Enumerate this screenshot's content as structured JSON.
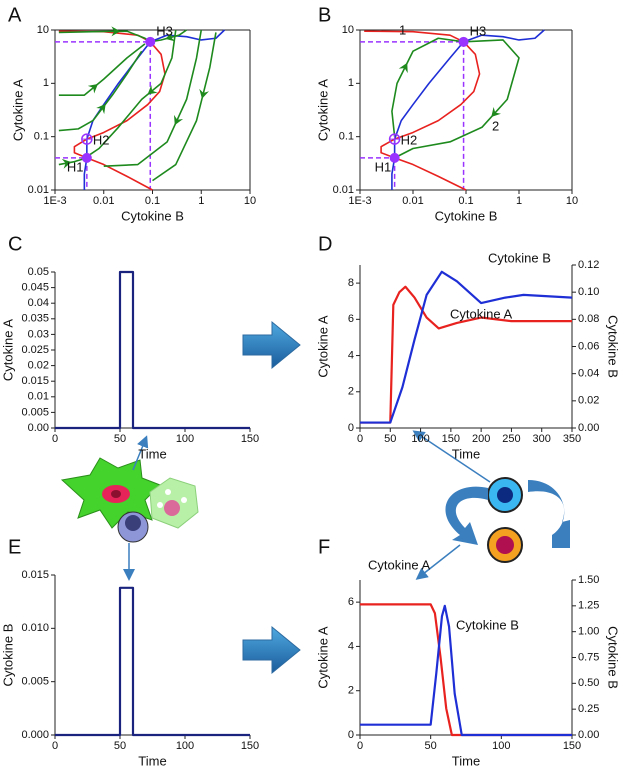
{
  "chart_data": [
    {
      "type": "phase",
      "panel": "A",
      "xlabel": "Cytokine B",
      "ylabel": "Cytokine A",
      "xscale": "log",
      "yscale": "log",
      "xlim": [
        0.001,
        10
      ],
      "ylim": [
        0.01,
        10
      ],
      "xticks": [
        {
          "value": 0.001,
          "label": "1E-3"
        },
        0.01,
        0.1,
        1,
        10
      ],
      "yticks": [
        0.01,
        0.1,
        1,
        10
      ],
      "guide_color": "#9933ff",
      "series": [
        {
          "color": "#e8221f",
          "x": [
            0.0012,
            0.01,
            0.05,
            0.09,
            0.15,
            0.18,
            0.14,
            0.08,
            0.03,
            0.01,
            0.0045,
            0.0025,
            0.0025,
            0.0045,
            0.01,
            0.03,
            0.1
          ],
          "values": [
            9.5,
            9.3,
            8,
            6,
            3.5,
            1.5,
            0.7,
            0.4,
            0.2,
            0.12,
            0.09,
            0.065,
            0.05,
            0.04,
            0.03,
            0.018,
            0.01
          ]
        },
        {
          "color": "#1f2fd6",
          "x": [
            0.004,
            0.004,
            0.0045,
            0.0045,
            0.006,
            0.01,
            0.02,
            0.05,
            0.09,
            0.2,
            0.5,
            1,
            2,
            3
          ],
          "values": [
            0.01,
            0.02,
            0.04,
            0.09,
            0.2,
            0.4,
            1,
            3,
            6,
            8,
            7.5,
            6.5,
            7,
            10
          ]
        },
        {
          "color": "#1e8a1e",
          "x": [
            0.0012,
            0.01,
            0.03,
            0.07,
            0.09
          ],
          "values": [
            9,
            9.4,
            9.5,
            7,
            6
          ]
        },
        {
          "color": "#1e8a1e",
          "x": [
            0.0012,
            0.004,
            0.01,
            0.03,
            0.07
          ],
          "values": [
            0.6,
            0.6,
            1.2,
            3,
            5.5
          ]
        },
        {
          "color": "#1e8a1e",
          "x": [
            0.0012,
            0.003,
            0.006,
            0.015,
            0.03,
            0.06
          ],
          "values": [
            0.13,
            0.14,
            0.2,
            0.6,
            1.5,
            4
          ]
        },
        {
          "color": "#1e8a1e",
          "x": [
            0.0012,
            0.0025,
            0.0045
          ],
          "values": [
            0.03,
            0.034,
            0.04
          ]
        },
        {
          "color": "#1e8a1e",
          "x": [
            0.5,
            0.35,
            0.15,
            0.1
          ],
          "values": [
            10,
            8,
            6.5,
            6.1
          ]
        },
        {
          "color": "#1e8a1e",
          "x": [
            0.3,
            0.25,
            0.15,
            0.06,
            0.02,
            0.008,
            0.005
          ],
          "values": [
            10,
            3,
            1,
            0.5,
            0.15,
            0.06,
            0.045
          ]
        },
        {
          "color": "#1e8a1e",
          "x": [
            1,
            0.8,
            0.5,
            0.2,
            0.05,
            0.01
          ],
          "values": [
            10,
            3,
            0.5,
            0.08,
            0.03,
            0.028
          ]
        },
        {
          "color": "#1e8a1e",
          "x": [
            2,
            1.5,
            0.8,
            0.3,
            0.1
          ],
          "values": [
            9,
            2,
            0.2,
            0.03,
            0.015
          ]
        }
      ],
      "points": [
        {
          "label": "H1",
          "x": 0.0045,
          "y": 0.04,
          "guides": true
        },
        {
          "label": "H2",
          "x": 0.0045,
          "y": 0.09,
          "hollow": true
        },
        {
          "label": "H3",
          "x": 0.09,
          "y": 6,
          "guides": true
        }
      ]
    },
    {
      "type": "phase",
      "panel": "B",
      "xlabel": "Cytokine B",
      "ylabel": "Cytokine A",
      "xscale": "log",
      "yscale": "log",
      "xlim": [
        0.001,
        10
      ],
      "ylim": [
        0.01,
        10
      ],
      "xticks": [
        {
          "value": 0.001,
          "label": "1E-3"
        },
        0.01,
        0.1,
        1,
        10
      ],
      "yticks": [
        0.01,
        0.1,
        1,
        10
      ],
      "guide_color": "#9933ff",
      "series": [
        {
          "color": "#e8221f",
          "x": [
            0.0012,
            0.01,
            0.05,
            0.09,
            0.15,
            0.18,
            0.14,
            0.08,
            0.03,
            0.01,
            0.0045,
            0.0025,
            0.0025,
            0.0045,
            0.01,
            0.03,
            0.1
          ],
          "values": [
            9.5,
            9.3,
            8,
            6,
            3.5,
            1.5,
            0.7,
            0.4,
            0.2,
            0.12,
            0.09,
            0.065,
            0.05,
            0.04,
            0.03,
            0.018,
            0.01
          ]
        },
        {
          "color": "#1f2fd6",
          "x": [
            0.004,
            0.004,
            0.0045,
            0.0045,
            0.006,
            0.01,
            0.02,
            0.05,
            0.09,
            0.2,
            0.5,
            1,
            2,
            3
          ],
          "values": [
            0.01,
            0.02,
            0.04,
            0.09,
            0.2,
            0.4,
            1,
            3,
            6,
            8,
            7.5,
            6.5,
            7,
            10
          ]
        },
        {
          "color": "#1e8a1e",
          "label": "1",
          "x": [
            0.0045,
            0.004,
            0.005,
            0.01,
            0.03,
            0.09
          ],
          "values": [
            0.1,
            0.3,
            1,
            4,
            7,
            6
          ]
        },
        {
          "color": "#1e8a1e",
          "label": "2",
          "x": [
            0.09,
            0.5,
            1,
            0.6,
            0.2,
            0.05,
            0.01,
            0.0045
          ],
          "values": [
            6,
            6.5,
            3,
            0.5,
            0.15,
            0.08,
            0.06,
            0.04
          ]
        }
      ],
      "points": [
        {
          "label": "H1",
          "x": 0.0045,
          "y": 0.04,
          "guides": true
        },
        {
          "label": "H2",
          "x": 0.0045,
          "y": 0.09,
          "hollow": true
        },
        {
          "label": "H3",
          "x": 0.09,
          "y": 6,
          "guides": true
        }
      ]
    },
    {
      "type": "line",
      "panel": "C",
      "xlabel": "Time",
      "ylabel": "Cytokine A",
      "xlim": [
        0,
        150
      ],
      "ylim": [
        0,
        0.05
      ],
      "xticks": [
        0,
        50,
        100,
        150
      ],
      "yticks": [
        {
          "value": 0,
          "label": "0.00"
        },
        0.005,
        0.01,
        0.015,
        0.02,
        0.025,
        0.03,
        0.035,
        0.04,
        0.045,
        0.05
      ],
      "series": [
        {
          "color": "#1a237e",
          "x": [
            0,
            50,
            50,
            60,
            60,
            150
          ],
          "values": [
            0,
            0,
            0.05,
            0.05,
            0,
            0
          ]
        }
      ]
    },
    {
      "type": "line",
      "panel": "D",
      "xlabel": "Time",
      "ylabel": "Cytokine A",
      "y2label": "Cytokine B",
      "xlim": [
        0,
        350
      ],
      "ylim": [
        0,
        9
      ],
      "y2lim": [
        0,
        0.12
      ],
      "xticks": [
        0,
        50,
        100,
        150,
        200,
        250,
        300,
        350
      ],
      "yticks": [
        0,
        2,
        4,
        6,
        8
      ],
      "y2ticks": [
        {
          "value": 0,
          "label": "0.00"
        },
        0.02,
        0.04,
        0.06,
        0.08,
        {
          "value": 0.1,
          "label": "0.10"
        },
        0.12
      ],
      "series": [
        {
          "name": "Cytokine A",
          "color": "#e8221f",
          "x": [
            0,
            50,
            55,
            65,
            75,
            90,
            110,
            130,
            160,
            200,
            250,
            300,
            350
          ],
          "values": [
            0.3,
            0.3,
            6.8,
            7.5,
            7.8,
            7.2,
            6.1,
            5.5,
            5.8,
            6.1,
            5.9,
            5.9,
            5.9
          ]
        },
        {
          "name": "Cytokine B",
          "color": "#1f2fd6",
          "axis": "y2",
          "x": [
            0,
            50,
            70,
            90,
            110,
            135,
            160,
            200,
            240,
            270,
            310,
            350
          ],
          "values": [
            0.004,
            0.004,
            0.03,
            0.065,
            0.098,
            0.115,
            0.108,
            0.092,
            0.096,
            0.098,
            0.097,
            0.096
          ]
        }
      ]
    },
    {
      "type": "line",
      "panel": "E",
      "xlabel": "Time",
      "ylabel": "Cytokine B",
      "xlim": [
        0,
        150
      ],
      "ylim": [
        0,
        0.015
      ],
      "xticks": [
        0,
        50,
        100,
        150
      ],
      "yticks": [
        {
          "value": 0,
          "label": "0.000"
        },
        0.005,
        {
          "value": 0.01,
          "label": "0.010"
        },
        0.015
      ],
      "series": [
        {
          "color": "#1a237e",
          "x": [
            0,
            50,
            50,
            60,
            60,
            150
          ],
          "values": [
            0,
            0,
            0.0138,
            0.0138,
            0,
            0
          ]
        }
      ]
    },
    {
      "type": "line",
      "panel": "F",
      "xlabel": "Time",
      "ylabel": "Cytokine A",
      "y2label": "Cytokine B",
      "xlim": [
        0,
        150
      ],
      "ylim": [
        0,
        7
      ],
      "y2lim": [
        0,
        1.5
      ],
      "xticks": [
        0,
        50,
        100,
        150
      ],
      "yticks": [
        0,
        2,
        4,
        6
      ],
      "y2ticks": [
        {
          "value": 0,
          "label": "0.00"
        },
        0.25,
        {
          "value": 0.5,
          "label": "0.50"
        },
        0.75,
        {
          "value": 1,
          "label": "1.00"
        },
        1.25,
        {
          "value": 1.5,
          "label": "1.50"
        }
      ],
      "series": [
        {
          "name": "Cytokine A",
          "color": "#e8221f",
          "x": [
            0,
            50,
            53,
            57,
            61,
            65,
            150
          ],
          "values": [
            5.9,
            5.9,
            5.5,
            3.5,
            1.2,
            0,
            0
          ]
        },
        {
          "name": "Cytokine B",
          "color": "#1f2fd6",
          "axis": "y2",
          "x": [
            0,
            50,
            54,
            58,
            60,
            63,
            67,
            72,
            150
          ],
          "values": [
            0.1,
            0.1,
            0.6,
            1.15,
            1.25,
            1.05,
            0.4,
            0,
            0
          ]
        }
      ]
    }
  ]
}
